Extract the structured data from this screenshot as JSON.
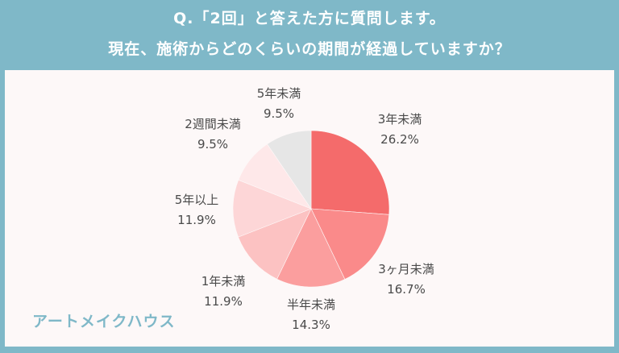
{
  "header": {
    "line1": "Q.「2回」と答えた方に質問します。",
    "line2": "現在、施術からどのくらいの期間が経過していますか？"
  },
  "brand": "アートメイクハウス",
  "colors": {
    "background": "#7fb8c8",
    "panel": "#fdf8f8",
    "label_text": "#4a4a4a"
  },
  "chart_data": {
    "type": "pie",
    "title": "現在、施術からどのくらいの期間が経過していますか？",
    "start_angle": "12 o'clock",
    "direction": "clockwise",
    "slices": [
      {
        "label": "3年未満",
        "value": 26.2,
        "display": "26.2%",
        "color": "#f46b6b"
      },
      {
        "label": "3ヶ月未満",
        "value": 16.7,
        "display": "16.7%",
        "color": "#fa8a8a"
      },
      {
        "label": "半年未満",
        "value": 14.3,
        "display": "14.3%",
        "color": "#fb9e9e"
      },
      {
        "label": "1年未満",
        "value": 11.9,
        "display": "11.9%",
        "color": "#fcc2c2"
      },
      {
        "label": "5年以上",
        "value": 11.9,
        "display": "11.9%",
        "color": "#fdd6d7"
      },
      {
        "label": "2週間未満",
        "value": 9.5,
        "display": "9.5%",
        "color": "#fee8e9"
      },
      {
        "label": "5年未満",
        "value": 9.5,
        "display": "9.5%",
        "color": "#e6e6e6"
      }
    ],
    "legend": "none (labels placed outside slices)"
  }
}
